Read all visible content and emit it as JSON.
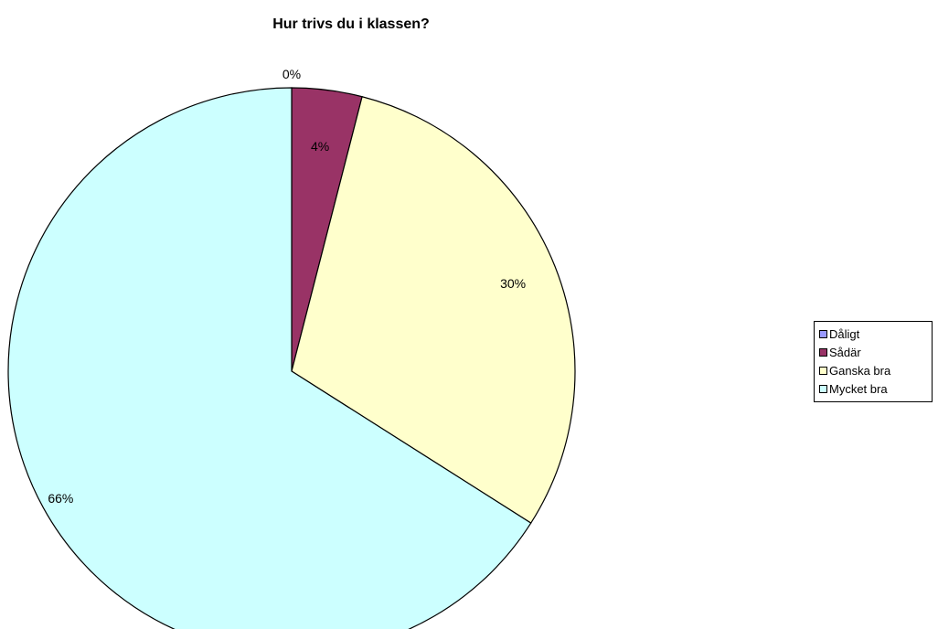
{
  "chart_data": {
    "type": "pie",
    "title": "Hur trivs du i klassen?",
    "slices": [
      {
        "label": "Dåligt",
        "value": 0,
        "display": "0%",
        "color": "#9999ff"
      },
      {
        "label": "Sådär",
        "value": 4,
        "display": "4%",
        "color": "#993366"
      },
      {
        "label": "Ganska bra",
        "value": 30,
        "display": "30%",
        "color": "#ffffcc"
      },
      {
        "label": "Mycket bra",
        "value": 66,
        "display": "66%",
        "color": "#ccffff"
      }
    ],
    "legend_position": "right"
  }
}
